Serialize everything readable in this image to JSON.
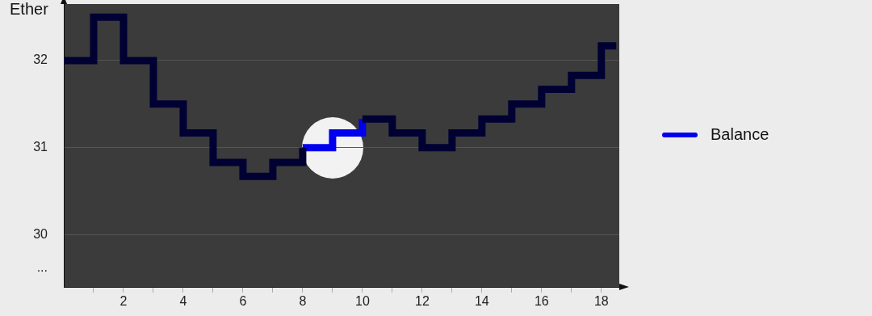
{
  "chart_data": {
    "type": "step",
    "ylabel": "Ether",
    "x": [
      0,
      1,
      2,
      3,
      4,
      5,
      6,
      7,
      8,
      9,
      10,
      11,
      12,
      13,
      14,
      15,
      16,
      17,
      18,
      18.5
    ],
    "series": [
      {
        "color": "#000033",
        "values": [
          32,
          32.5,
          32,
          31.5,
          31.17,
          30.83,
          30.67,
          30.83,
          31,
          null,
          31.33,
          31.17,
          31,
          31.17,
          31.33,
          31.5,
          31.67,
          31.83,
          32.17,
          32.17
        ]
      },
      {
        "name": "Balance",
        "color": "#0000ee",
        "x": [
          8,
          9,
          10
        ],
        "values": [
          31,
          31.17,
          31.33
        ]
      }
    ],
    "xlim": [
      0,
      18.6
    ],
    "ylim": [
      29.4,
      32.65
    ],
    "xticks": [
      {
        "value": 1,
        "label": null
      },
      2,
      {
        "value": 3,
        "label": null
      },
      4,
      {
        "value": 5,
        "label": null
      },
      6,
      {
        "value": 7,
        "label": null
      },
      8,
      {
        "value": 9,
        "label": null
      },
      10,
      {
        "value": 11,
        "label": null
      },
      12,
      {
        "value": 13,
        "label": null
      },
      14,
      {
        "value": 15,
        "label": null
      },
      16,
      {
        "value": 17,
        "label": null
      },
      18
    ],
    "yticks": [
      {
        "value": 29.62,
        "label": "..."
      },
      30,
      31,
      32
    ],
    "grid": "y",
    "legend": "right"
  }
}
